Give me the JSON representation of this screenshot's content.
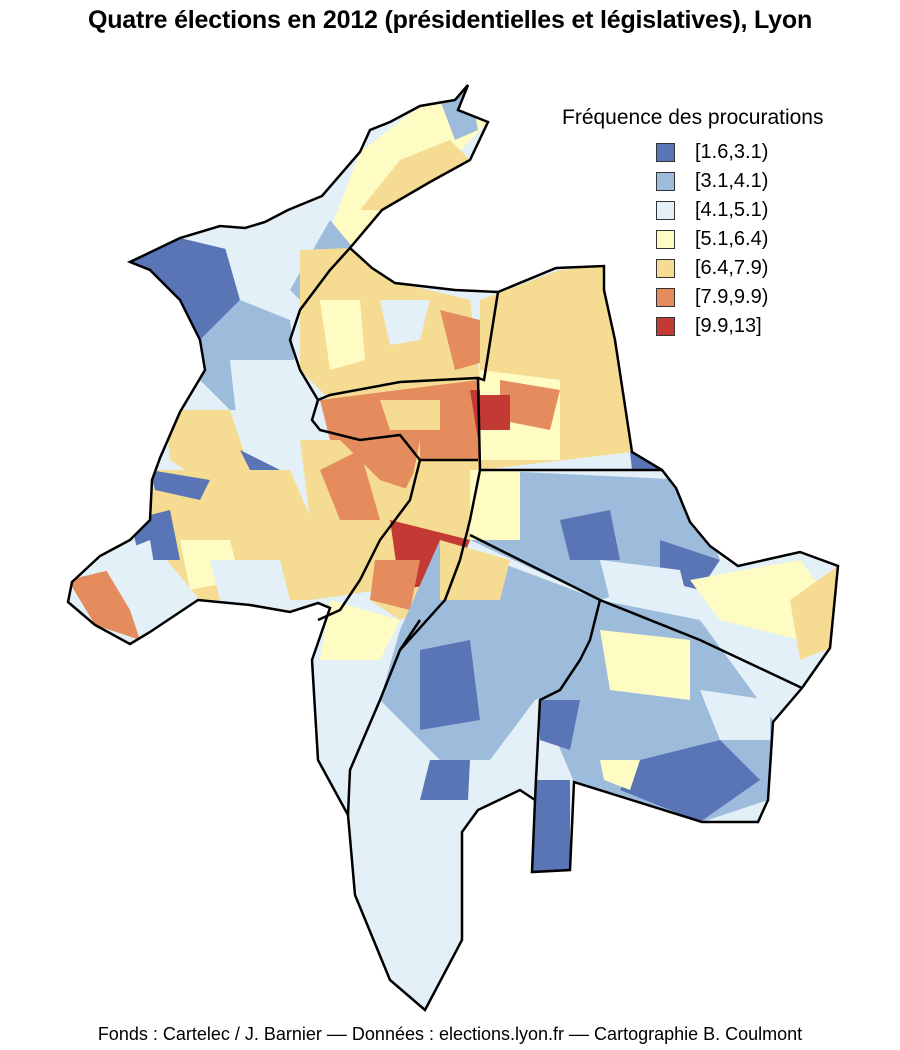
{
  "title": "Quatre élections en 2012 (présidentielles et législatives), Lyon",
  "legend": {
    "title": "Fréquence des procurations",
    "classes": [
      {
        "label": "[1.6,3.1)",
        "color": "#5a75b6"
      },
      {
        "label": "[3.1,4.1)",
        "color": "#9dbcdb"
      },
      {
        "label": "[4.1,5.1)",
        "color": "#e3f0f7"
      },
      {
        "label": "[5.1,6.4)",
        "color": "#fefbc3"
      },
      {
        "label": "[6.4,7.9)",
        "color": "#f5dc92"
      },
      {
        "label": "[7.9,9.9)",
        "color": "#e48c5e"
      },
      {
        "label": "[9.9,13]",
        "color": "#c23a33"
      }
    ]
  },
  "footer": "Fonds : Cartelec / J. Barnier –– Données : elections.lyon.fr –– Cartographie B. Coulmont"
}
